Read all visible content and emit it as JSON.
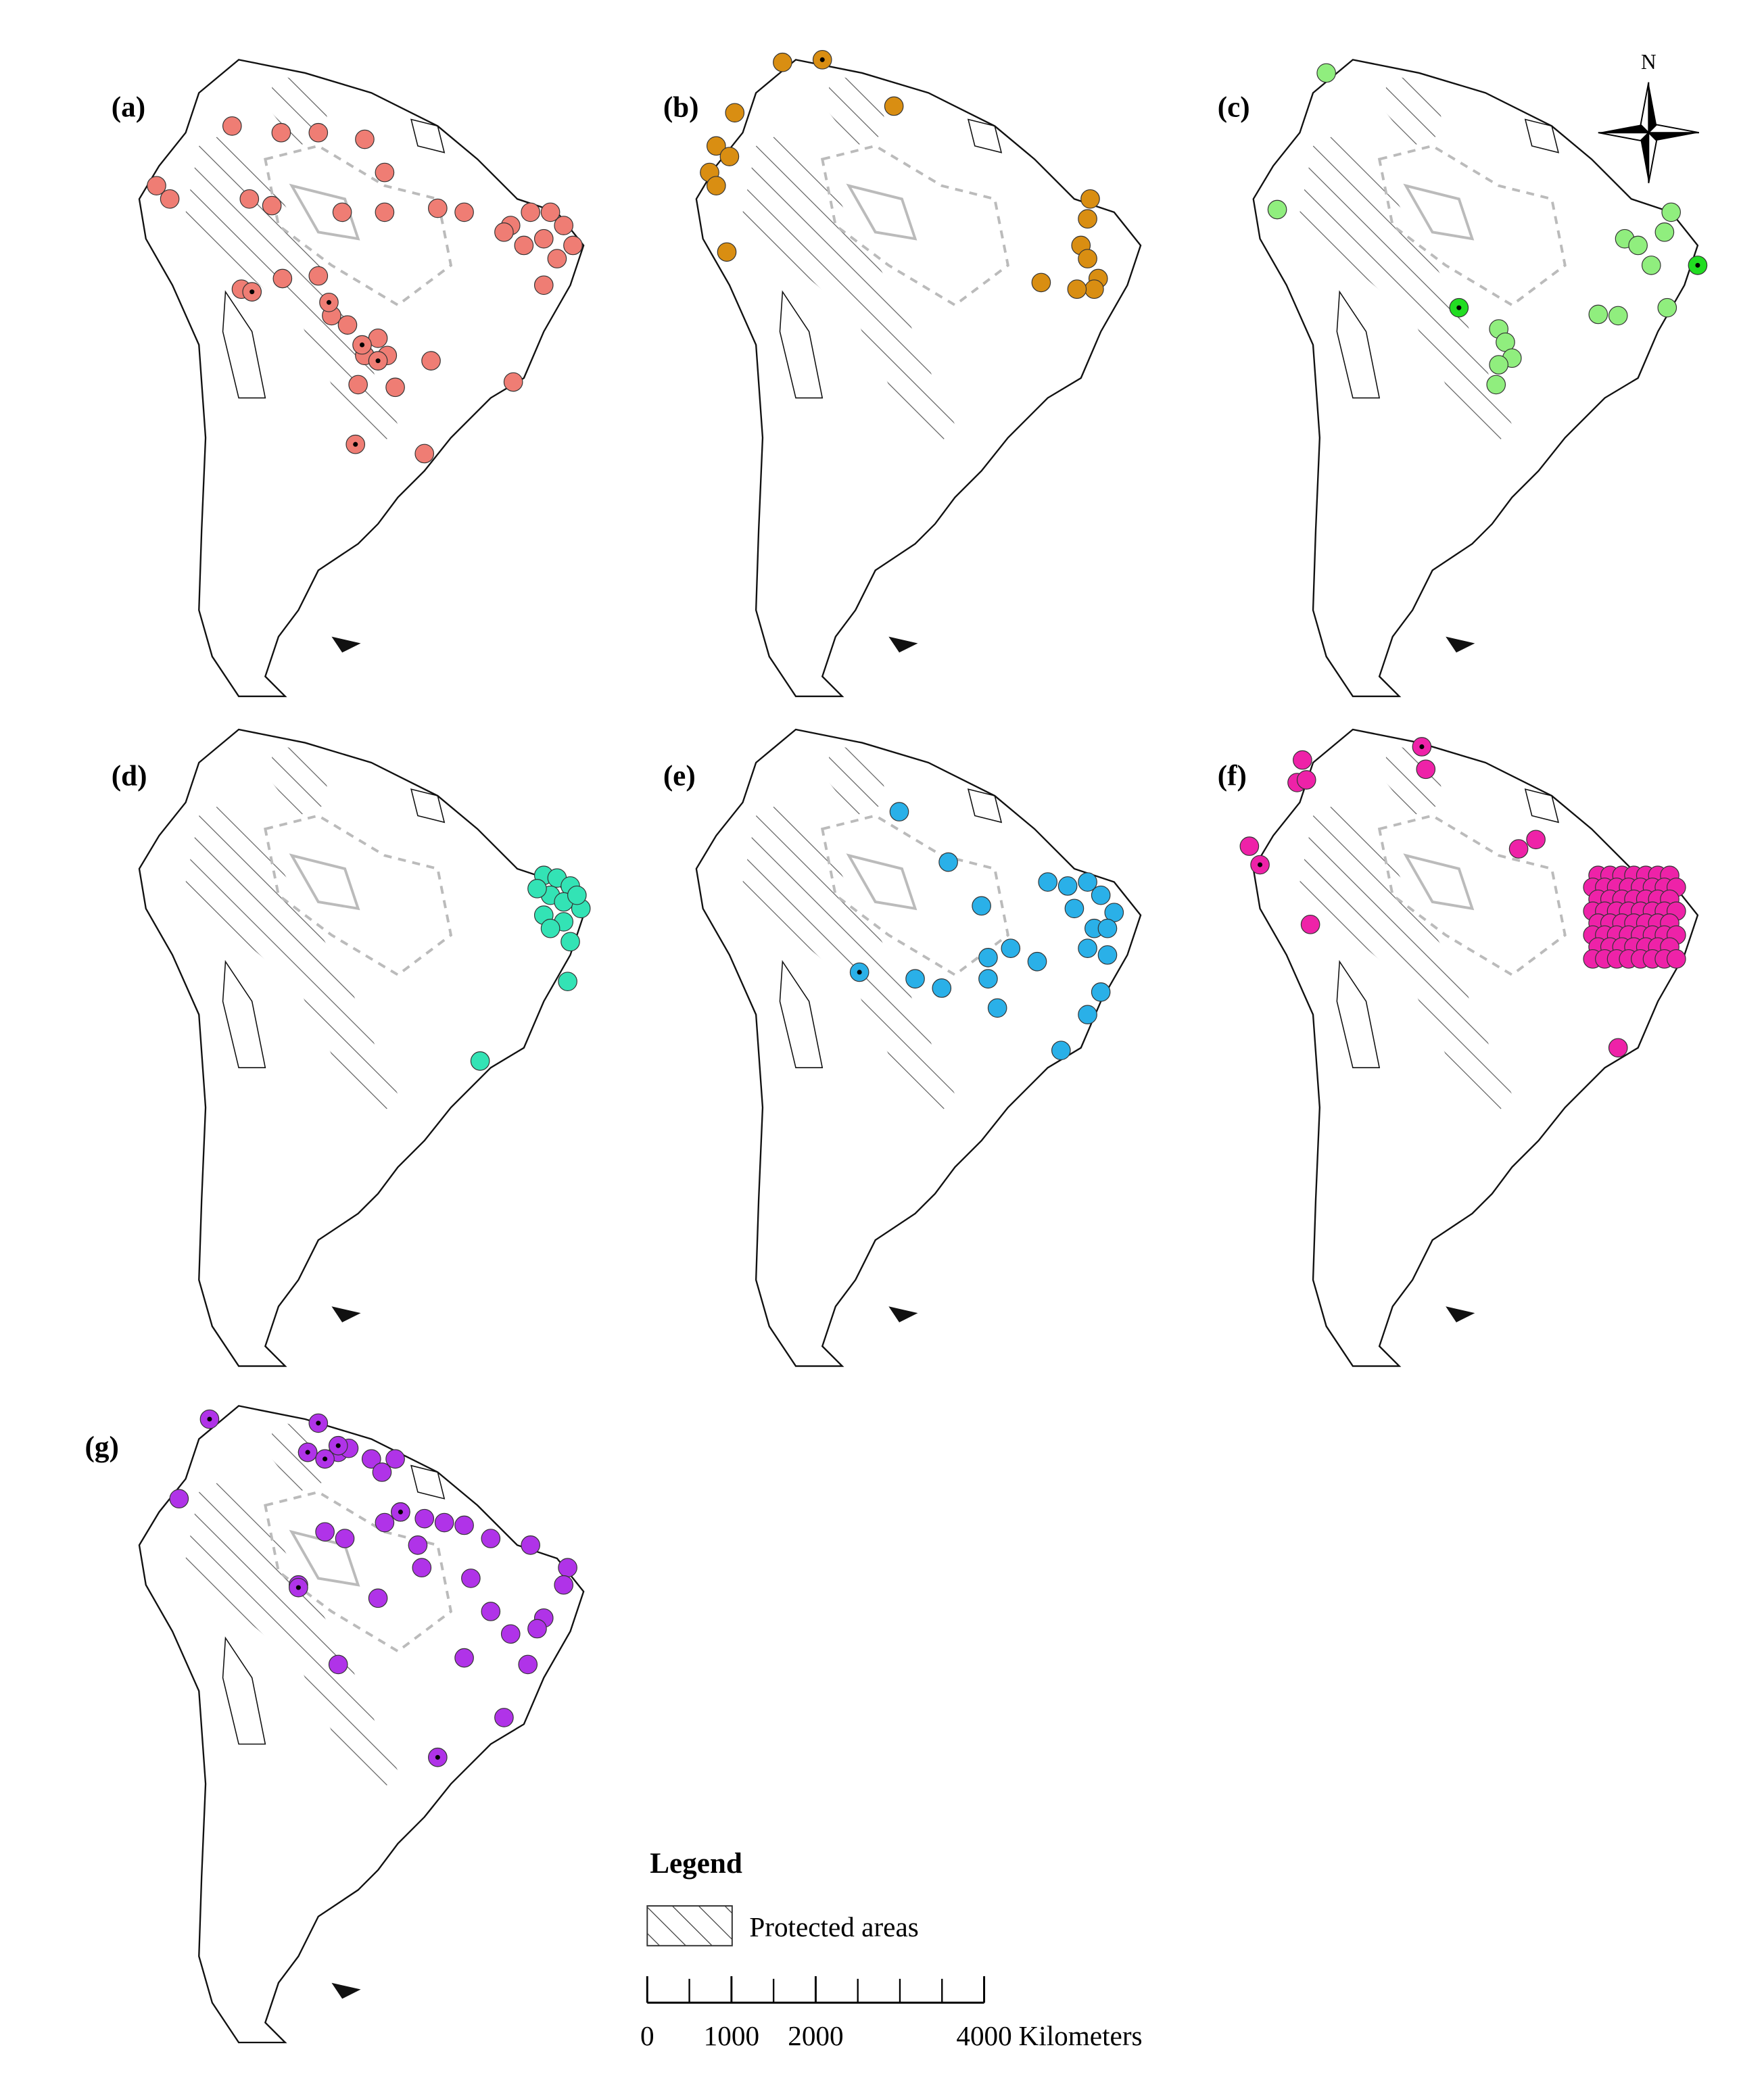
{
  "panels": [
    {
      "label": "(a)"
    },
    {
      "label": "(b)"
    },
    {
      "label": "(c)"
    },
    {
      "label": "(d)"
    },
    {
      "label": "(e)"
    },
    {
      "label": "(f)"
    },
    {
      "label": "(g)"
    }
  ],
  "north": "N",
  "legend": {
    "title": "Legend",
    "protected_areas": "Protected areas"
  },
  "scale": {
    "ticks": [
      0,
      1000,
      2000,
      4000
    ],
    "unit": "Kilometers"
  }
}
